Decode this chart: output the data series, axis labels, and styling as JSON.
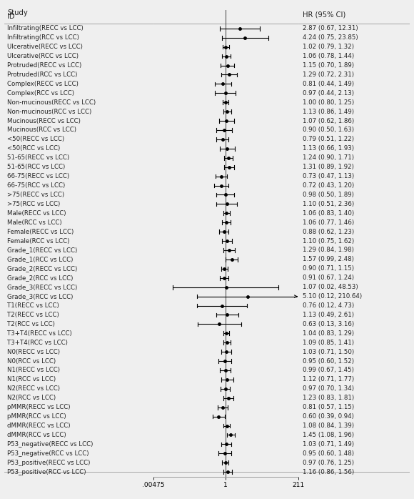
{
  "title_left1": "Study",
  "title_left2": "ID",
  "title_right": "HR (95% CI)",
  "studies": [
    {
      "label": "Infiltrating(RECC vs LCC)",
      "hr": 2.87,
      "lo": 0.67,
      "hi": 12.31,
      "ci_text": "2.87 (0.67, 12.31)",
      "arrow_right": false
    },
    {
      "label": "Infiltrating(RCC vs LCC)",
      "hr": 4.24,
      "lo": 0.75,
      "hi": 23.85,
      "ci_text": "4.24 (0.75, 23.85)",
      "arrow_right": false
    },
    {
      "label": "Ulcerative(RECC vs LCC)",
      "hr": 1.02,
      "lo": 0.79,
      "hi": 1.32,
      "ci_text": "1.02 (0.79, 1.32)",
      "arrow_right": false
    },
    {
      "label": "Ulcerative(RCC vs LCC)",
      "hr": 1.06,
      "lo": 0.78,
      "hi": 1.44,
      "ci_text": "1.06 (0.78, 1.44)",
      "arrow_right": false
    },
    {
      "label": "Protruded(RECC vs LCC)",
      "hr": 1.15,
      "lo": 0.7,
      "hi": 1.89,
      "ci_text": "1.15 (0.70, 1.89)",
      "arrow_right": false
    },
    {
      "label": "Protruded(RCC vs LCC)",
      "hr": 1.29,
      "lo": 0.72,
      "hi": 2.31,
      "ci_text": "1.29 (0.72, 2.31)",
      "arrow_right": false
    },
    {
      "label": "Complex(RECC vs LCC)",
      "hr": 0.81,
      "lo": 0.44,
      "hi": 1.49,
      "ci_text": "0.81 (0.44, 1.49)",
      "arrow_right": false
    },
    {
      "label": "Complex(RCC vs LCC)",
      "hr": 0.97,
      "lo": 0.44,
      "hi": 2.13,
      "ci_text": "0.97 (0.44, 2.13)",
      "arrow_right": false
    },
    {
      "label": "Non-mucinous(RECC vs LCC)",
      "hr": 1.0,
      "lo": 0.8,
      "hi": 1.25,
      "ci_text": "1.00 (0.80, 1.25)",
      "arrow_right": false
    },
    {
      "label": "Non-mucinous(RCC vs LCC)",
      "hr": 1.13,
      "lo": 0.86,
      "hi": 1.49,
      "ci_text": "1.13 (0.86, 1.49)",
      "arrow_right": false
    },
    {
      "label": "Mucinous(RECC vs LCC)",
      "hr": 1.07,
      "lo": 0.62,
      "hi": 1.86,
      "ci_text": "1.07 (0.62, 1.86)",
      "arrow_right": false
    },
    {
      "label": "Mucinous(RCC vs LCC)",
      "hr": 0.9,
      "lo": 0.5,
      "hi": 1.63,
      "ci_text": "0.90 (0.50, 1.63)",
      "arrow_right": false
    },
    {
      "label": "<50(RECC vs LCC)",
      "hr": 0.79,
      "lo": 0.51,
      "hi": 1.22,
      "ci_text": "0.79 (0.51, 1.22)",
      "arrow_right": false
    },
    {
      "label": "<50(RCC vs LCC)",
      "hr": 1.13,
      "lo": 0.66,
      "hi": 1.93,
      "ci_text": "1.13 (0.66, 1.93)",
      "arrow_right": false
    },
    {
      "label": "51-65(RECC vs LCC)",
      "hr": 1.24,
      "lo": 0.9,
      "hi": 1.71,
      "ci_text": "1.24 (0.90, 1.71)",
      "arrow_right": false
    },
    {
      "label": "51-65(RCC vs LCC)",
      "hr": 1.31,
      "lo": 0.89,
      "hi": 1.92,
      "ci_text": "1.31 (0.89, 1.92)",
      "arrow_right": false
    },
    {
      "label": "66-75(RECC vs LCC)",
      "hr": 0.73,
      "lo": 0.47,
      "hi": 1.13,
      "ci_text": "0.73 (0.47, 1.13)",
      "arrow_right": false
    },
    {
      "label": "66-75(RCC vs LCC)",
      "hr": 0.72,
      "lo": 0.43,
      "hi": 1.2,
      "ci_text": "0.72 (0.43, 1.20)",
      "arrow_right": false
    },
    {
      "label": ">75(RECC vs LCC)",
      "hr": 0.98,
      "lo": 0.5,
      "hi": 1.89,
      "ci_text": "0.98 (0.50, 1.89)",
      "arrow_right": false
    },
    {
      "label": ">75(RCC vs LCC)",
      "hr": 1.1,
      "lo": 0.51,
      "hi": 2.36,
      "ci_text": "1.10 (0.51, 2.36)",
      "arrow_right": false
    },
    {
      "label": "Male(RECC vs LCC)",
      "hr": 1.06,
      "lo": 0.83,
      "hi": 1.4,
      "ci_text": "1.06 (0.83, 1.40)",
      "arrow_right": false
    },
    {
      "label": "Male(RCC vs LCC)",
      "hr": 1.06,
      "lo": 0.77,
      "hi": 1.46,
      "ci_text": "1.06 (0.77, 1.46)",
      "arrow_right": false
    },
    {
      "label": "Female(RECC vs LCC)",
      "hr": 0.88,
      "lo": 0.62,
      "hi": 1.23,
      "ci_text": "0.88 (0.62, 1.23)",
      "arrow_right": false
    },
    {
      "label": "Female(RCC vs LCC)",
      "hr": 1.1,
      "lo": 0.75,
      "hi": 1.62,
      "ci_text": "1.10 (0.75, 1.62)",
      "arrow_right": false
    },
    {
      "label": "Grade_1(RECC vs LCC)",
      "hr": 1.29,
      "lo": 0.84,
      "hi": 1.98,
      "ci_text": "1.29 (0.84, 1.98)",
      "arrow_right": false
    },
    {
      "label": "Grade_1(RCC vs LCC)",
      "hr": 1.57,
      "lo": 0.99,
      "hi": 2.48,
      "ci_text": "1.57 (0.99, 2.48)",
      "arrow_right": false
    },
    {
      "label": "Grade_2(RECC vs LCC)",
      "hr": 0.9,
      "lo": 0.71,
      "hi": 1.15,
      "ci_text": "0.90 (0.71, 1.15)",
      "arrow_right": false
    },
    {
      "label": "Grade_2(RCC vs LCC)",
      "hr": 0.91,
      "lo": 0.67,
      "hi": 1.24,
      "ci_text": "0.91 (0.67, 1.24)",
      "arrow_right": false
    },
    {
      "label": "Grade_3(RECC vs LCC)",
      "hr": 1.07,
      "lo": 0.02,
      "hi": 48.53,
      "ci_text": "1.07 (0.02, 48.53)",
      "arrow_right": false
    },
    {
      "label": "Grade_3(RCC vs LCC)",
      "hr": 5.1,
      "lo": 0.12,
      "hi": 210.64,
      "ci_text": "5.10 (0.12, 210.64)",
      "arrow_right": true
    },
    {
      "label": "T1(RECC vs LCC)",
      "hr": 0.76,
      "lo": 0.12,
      "hi": 4.73,
      "ci_text": "0.76 (0.12, 4.73)",
      "arrow_right": false
    },
    {
      "label": "T2(RECC vs LCC)",
      "hr": 1.13,
      "lo": 0.49,
      "hi": 2.61,
      "ci_text": "1.13 (0.49, 2.61)",
      "arrow_right": false
    },
    {
      "label": "T2(RCC vs LCC)",
      "hr": 0.63,
      "lo": 0.13,
      "hi": 3.16,
      "ci_text": "0.63 (0.13, 3.16)",
      "arrow_right": false
    },
    {
      "label": "T3+T4(RECC vs LCC)",
      "hr": 1.04,
      "lo": 0.83,
      "hi": 1.29,
      "ci_text": "1.04 (0.83, 1.29)",
      "arrow_right": false
    },
    {
      "label": "T3+T4(RCC vs LCC)",
      "hr": 1.09,
      "lo": 0.85,
      "hi": 1.41,
      "ci_text": "1.09 (0.85, 1.41)",
      "arrow_right": false
    },
    {
      "label": "N0(RECC vs LCC)",
      "hr": 1.03,
      "lo": 0.71,
      "hi": 1.5,
      "ci_text": "1.03 (0.71, 1.50)",
      "arrow_right": false
    },
    {
      "label": "N0(RCC vs LCC)",
      "hr": 0.95,
      "lo": 0.6,
      "hi": 1.52,
      "ci_text": "0.95 (0.60, 1.52)",
      "arrow_right": false
    },
    {
      "label": "N1(RECC vs LCC)",
      "hr": 0.99,
      "lo": 0.67,
      "hi": 1.45,
      "ci_text": "0.99 (0.67, 1.45)",
      "arrow_right": false
    },
    {
      "label": "N1(RCC vs LCC)",
      "hr": 1.12,
      "lo": 0.71,
      "hi": 1.77,
      "ci_text": "1.12 (0.71, 1.77)",
      "arrow_right": false
    },
    {
      "label": "N2(RECC vs LCC)",
      "hr": 0.97,
      "lo": 0.7,
      "hi": 1.34,
      "ci_text": "0.97 (0.70, 1.34)",
      "arrow_right": false
    },
    {
      "label": "N2(RCC vs LCC)",
      "hr": 1.23,
      "lo": 0.83,
      "hi": 1.81,
      "ci_text": "1.23 (0.83, 1.81)",
      "arrow_right": false
    },
    {
      "label": "pMMR(RECC vs LCC)",
      "hr": 0.81,
      "lo": 0.57,
      "hi": 1.15,
      "ci_text": "0.81 (0.57, 1.15)",
      "arrow_right": false
    },
    {
      "label": "pMMR(RCC vs LCC)",
      "hr": 0.6,
      "lo": 0.39,
      "hi": 0.94,
      "ci_text": "0.60 (0.39, 0.94)",
      "arrow_right": false
    },
    {
      "label": "dMMR(RECC vs LCC)",
      "hr": 1.08,
      "lo": 0.84,
      "hi": 1.39,
      "ci_text": "1.08 (0.84, 1.39)",
      "arrow_right": false
    },
    {
      "label": "dMMR(RCC vs LCC)",
      "hr": 1.45,
      "lo": 1.08,
      "hi": 1.96,
      "ci_text": "1.45 (1.08, 1.96)",
      "arrow_right": false
    },
    {
      "label": "P53_negative(RECC vs LCC)",
      "hr": 1.03,
      "lo": 0.71,
      "hi": 1.49,
      "ci_text": "1.03 (0.71, 1.49)",
      "arrow_right": false
    },
    {
      "label": "P53_negative(RCC vs LCC)",
      "hr": 0.95,
      "lo": 0.6,
      "hi": 1.48,
      "ci_text": "0.95 (0.60, 1.48)",
      "arrow_right": false
    },
    {
      "label": "P53_positive(RECC vs LCC)",
      "hr": 0.97,
      "lo": 0.76,
      "hi": 1.25,
      "ci_text": "0.97 (0.76, 1.25)",
      "arrow_right": false
    },
    {
      "label": "P53_positive(RCC vs LCC)",
      "hr": 1.16,
      "lo": 0.86,
      "hi": 1.56,
      "ci_text": "1.16 (0.86, 1.56)",
      "arrow_right": false
    }
  ],
  "x_min": 0.00475,
  "x_max": 211,
  "xtick_positions": [
    0.00475,
    1,
    211
  ],
  "xtick_labels": [
    ".00475",
    "1",
    "211"
  ],
  "bg_color": "#efefef",
  "text_color": "#222222",
  "fontsize_labels": 6.2,
  "fontsize_header": 7.2,
  "fontsize_ticks": 6.5,
  "marker_size": 2.5,
  "lw_ci": 0.8,
  "lw_ref": 0.8,
  "lw_sep": 0.6,
  "clip_hi": 211
}
